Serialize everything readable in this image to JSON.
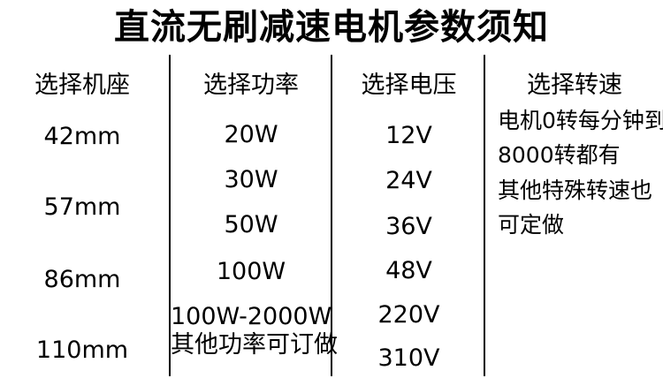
{
  "title": "直流无刷减速电机参数须知",
  "columns": [
    {
      "id": "frame-size",
      "header": "选择机座",
      "items": [
        "42mm",
        "57mm",
        "86mm",
        "110mm"
      ]
    },
    {
      "id": "power",
      "header": "选择功率",
      "items": [
        "20W",
        "30W",
        "50W",
        "100W",
        "100W-2000W",
        "其他功率可订做"
      ]
    },
    {
      "id": "voltage",
      "header": "选择电压",
      "items": [
        "12V",
        "24V",
        "36V",
        "48V",
        "220V",
        "310V"
      ]
    },
    {
      "id": "speed",
      "header": "选择转速",
      "items": [
        "电机0转每分钟到",
        "8000转都有",
        "其他特殊转速也",
        "可定做"
      ]
    }
  ],
  "colors": {
    "text": "#000000",
    "background": "#ffffff",
    "divider": "#000000"
  }
}
